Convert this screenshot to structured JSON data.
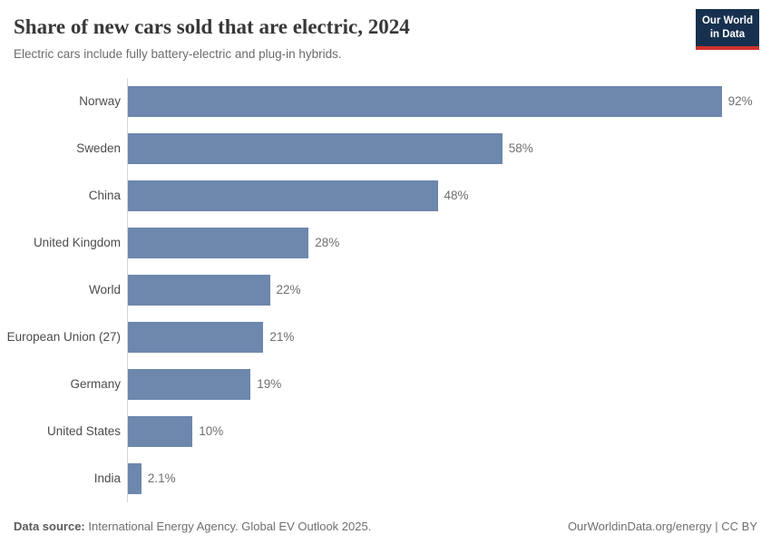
{
  "header": {
    "title": "Share of new cars sold that are electric, 2024",
    "subtitle": "Electric cars include fully battery-electric and plug-in hybrids.",
    "logo": {
      "line1": "Our World",
      "line2": "in Data"
    }
  },
  "chart_data": {
    "type": "bar",
    "orientation": "horizontal",
    "title": "Share of new cars sold that are electric, 2024",
    "subtitle": "Electric cars include fully battery-electric and plug-in hybrids.",
    "categories": [
      "Norway",
      "Sweden",
      "China",
      "United Kingdom",
      "World",
      "European Union (27)",
      "Germany",
      "United States",
      "India"
    ],
    "values": [
      92,
      58,
      48,
      28,
      22,
      21,
      19,
      10,
      2.1
    ],
    "value_labels": [
      "92%",
      "58%",
      "48%",
      "28%",
      "22%",
      "21%",
      "19%",
      "10%",
      "2.1%"
    ],
    "xlim": [
      0,
      100
    ],
    "grid": false,
    "legend": "none",
    "unit": "%"
  },
  "footer": {
    "data_source_label": "Data source:",
    "data_source_text": " International Energy Agency. Global EV Outlook 2025.",
    "right_text": "OurWorldinData.org/energy | CC BY"
  },
  "colors": {
    "bar": "#6d87ad",
    "logo_bg": "#17304f",
    "logo_accent": "#d0322a",
    "axis_line": "#d6d6d6"
  }
}
